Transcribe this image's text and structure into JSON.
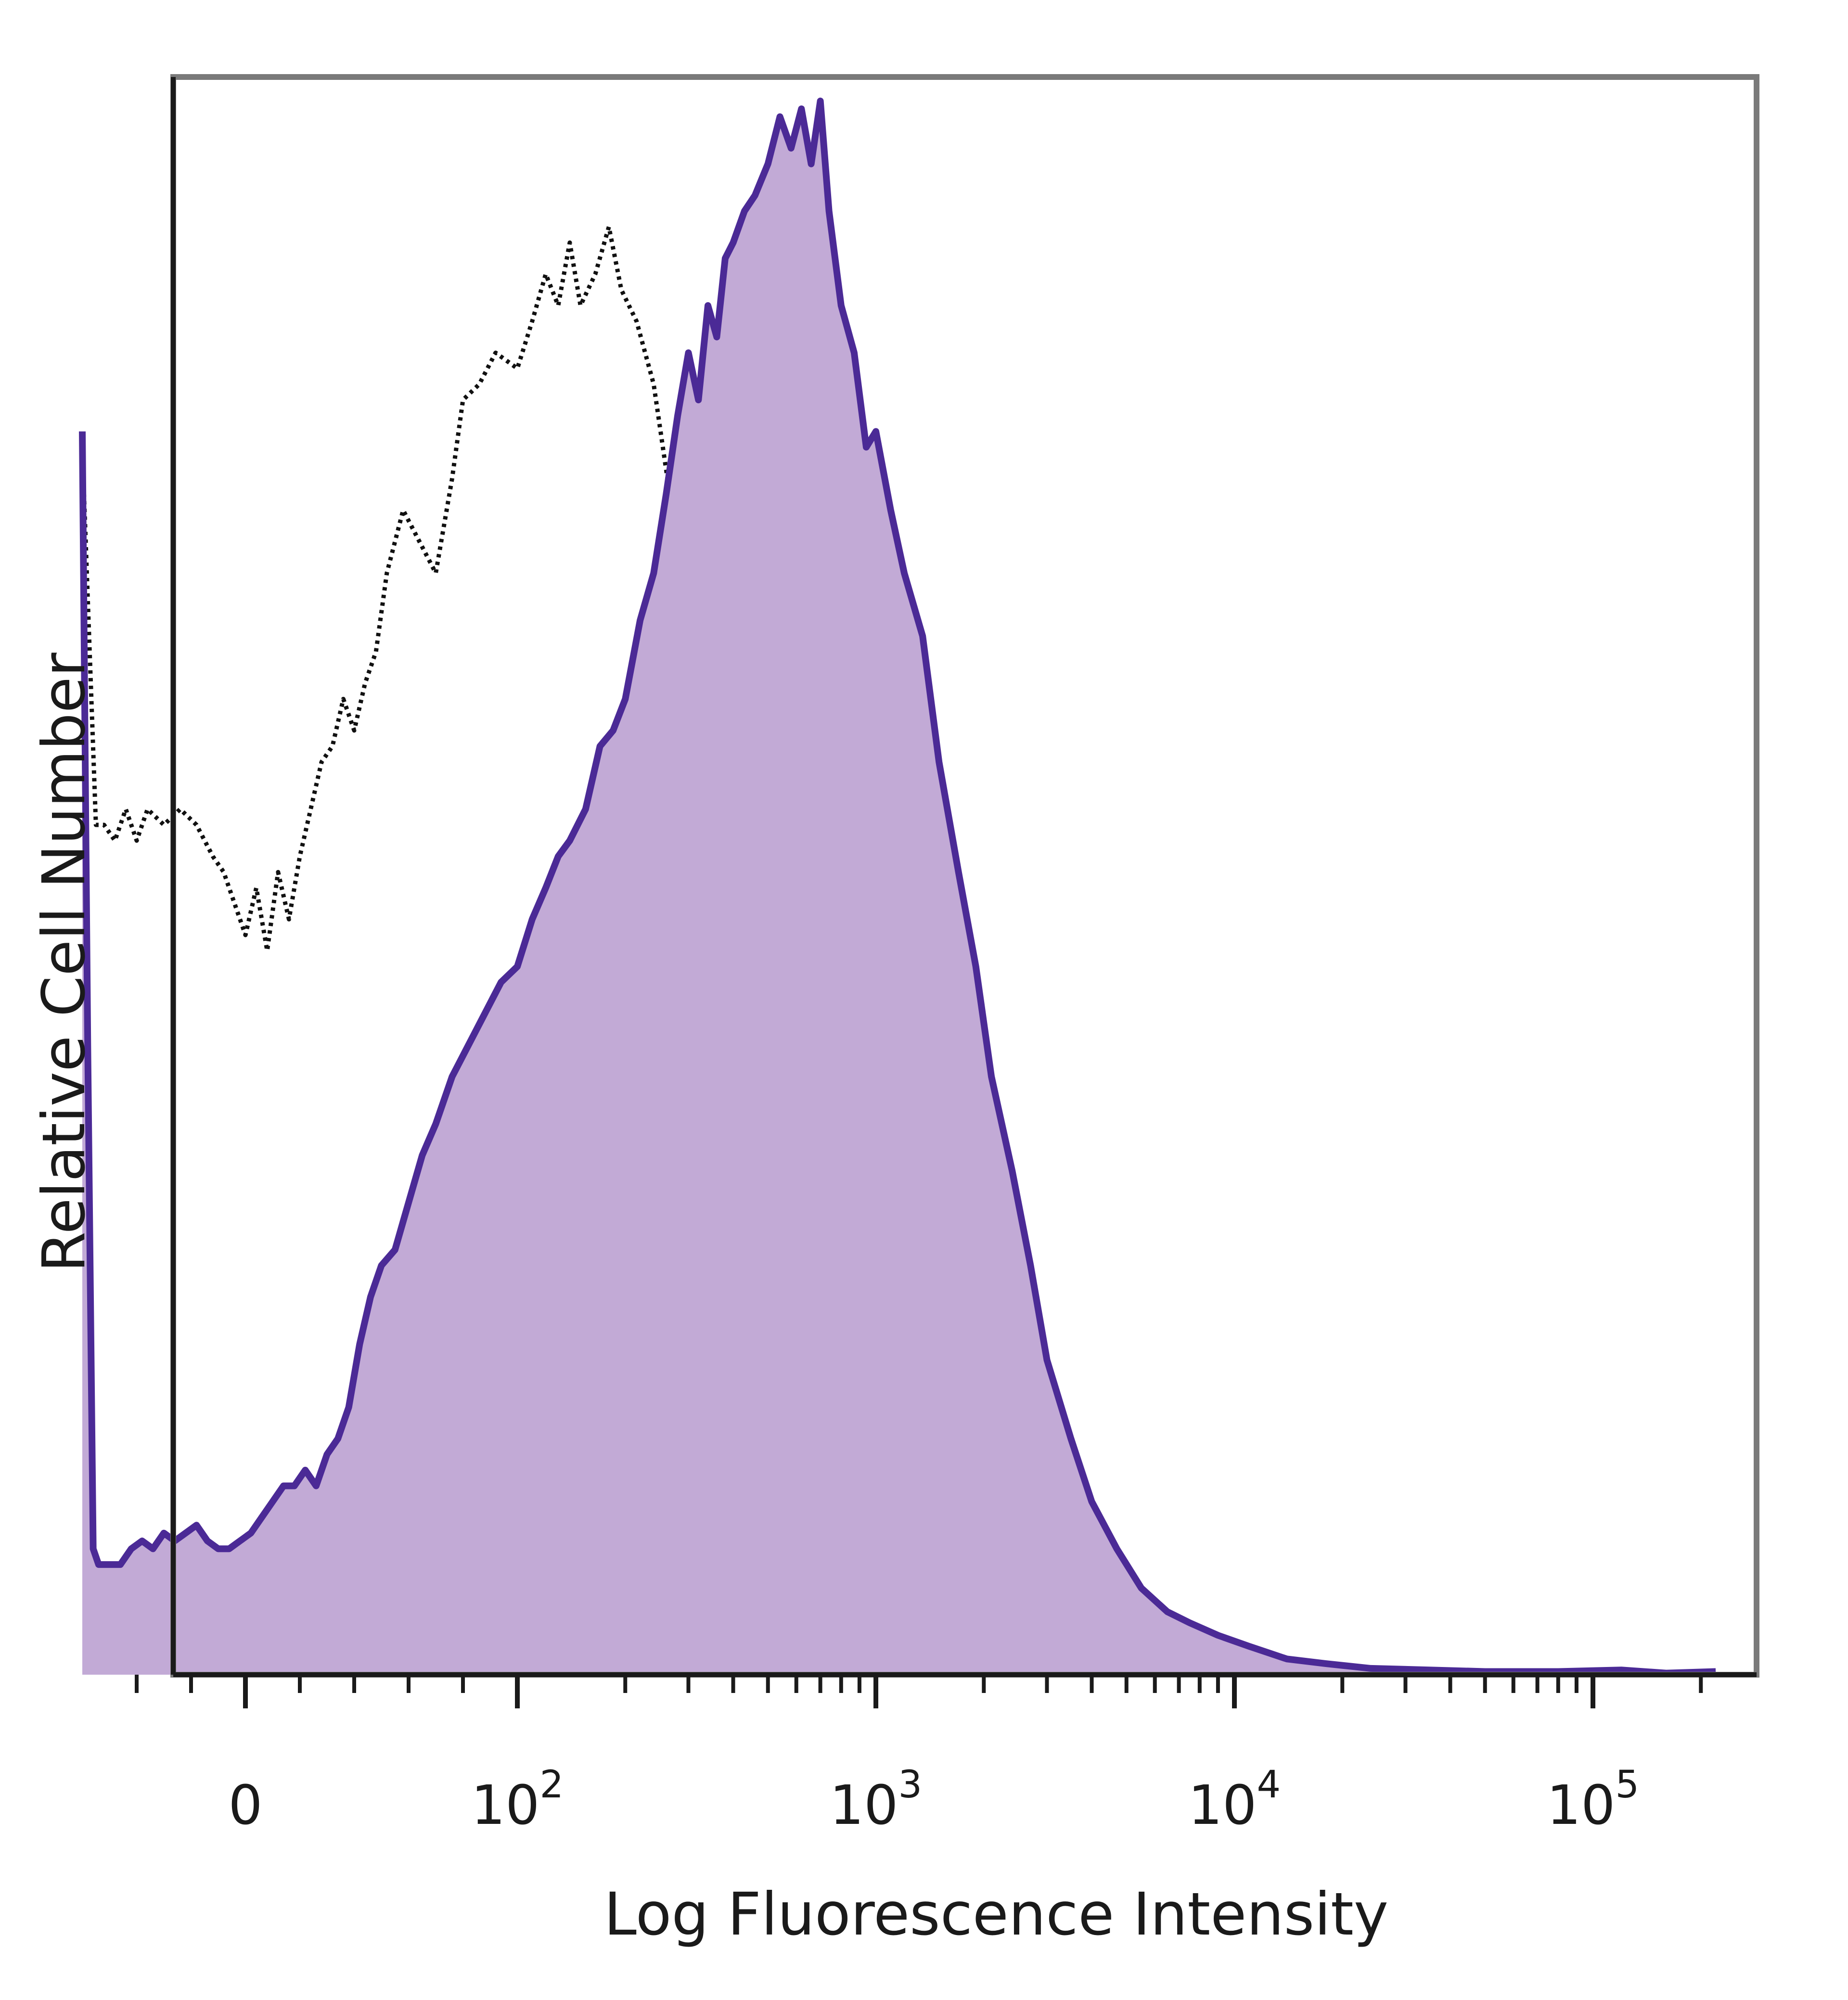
{
  "chart_data": {
    "type": "area",
    "title": "",
    "xlabel": "Log Fluorescence Intensity",
    "ylabel": "Relative Cell Number",
    "x_scale": "log",
    "xlim": [
      -60,
      250000
    ],
    "ylim": [
      0,
      1
    ],
    "grid": false,
    "legend": "none",
    "x_tick_labels": [
      {
        "value": 0,
        "label": "0"
      },
      {
        "value": 100,
        "base": "10",
        "exp": "2"
      },
      {
        "value": 1000,
        "base": "10",
        "exp": "3"
      },
      {
        "value": 10000,
        "base": "10",
        "exp": "4"
      },
      {
        "value": 100000,
        "base": "10",
        "exp": "5"
      }
    ],
    "x_minor_ticks": [
      -40,
      -20,
      20,
      40,
      60,
      80,
      200,
      300,
      400,
      500,
      600,
      700,
      800,
      900,
      2000,
      3000,
      4000,
      5000,
      6000,
      7000,
      8000,
      9000,
      20000,
      30000,
      40000,
      50000,
      60000,
      70000,
      80000,
      90000,
      200000
    ],
    "series": [
      {
        "style": "dotted",
        "color": "#111111",
        "fill": "none",
        "points": [
          [
            -60,
            0.78
          ],
          [
            -55,
            0.54
          ],
          [
            -52,
            0.54
          ],
          [
            -48,
            0.53
          ],
          [
            -44,
            0.55
          ],
          [
            -40,
            0.53
          ],
          [
            -36,
            0.55
          ],
          [
            -30,
            0.54
          ],
          [
            -24,
            0.55
          ],
          [
            -18,
            0.54
          ],
          [
            -12,
            0.52
          ],
          [
            -8,
            0.51
          ],
          [
            -4,
            0.49
          ],
          [
            0,
            0.47
          ],
          [
            4,
            0.5
          ],
          [
            8,
            0.46
          ],
          [
            12,
            0.51
          ],
          [
            16,
            0.48
          ],
          [
            20,
            0.52
          ],
          [
            24,
            0.55
          ],
          [
            28,
            0.58
          ],
          [
            32,
            0.59
          ],
          [
            36,
            0.62
          ],
          [
            40,
            0.6
          ],
          [
            44,
            0.63
          ],
          [
            48,
            0.65
          ],
          [
            52,
            0.7
          ],
          [
            58,
            0.74
          ],
          [
            64,
            0.72
          ],
          [
            70,
            0.7
          ],
          [
            76,
            0.76
          ],
          [
            80,
            0.81
          ],
          [
            86,
            0.82
          ],
          [
            92,
            0.84
          ],
          [
            100,
            0.83
          ],
          [
            110,
            0.86
          ],
          [
            120,
            0.89
          ],
          [
            130,
            0.87
          ],
          [
            140,
            0.91
          ],
          [
            150,
            0.87
          ],
          [
            165,
            0.89
          ],
          [
            180,
            0.92
          ],
          [
            195,
            0.88
          ],
          [
            215,
            0.86
          ],
          [
            240,
            0.82
          ],
          [
            270,
            0.74
          ],
          [
            300,
            0.64
          ],
          [
            340,
            0.52
          ],
          [
            380,
            0.4
          ],
          [
            420,
            0.29
          ],
          [
            460,
            0.2
          ],
          [
            500,
            0.13
          ],
          [
            560,
            0.07
          ],
          [
            620,
            0.03
          ],
          [
            700,
            0.015
          ],
          [
            800,
            0.005
          ],
          [
            900,
            0.003
          ],
          [
            1000,
            0.002
          ],
          [
            1200,
            0.004
          ],
          [
            1400,
            0.002
          ],
          [
            1600,
            0.003
          ],
          [
            1800,
            0.001
          ],
          [
            2200,
            0.0
          ]
        ]
      },
      {
        "style": "solid",
        "color": "#4b2a96",
        "fill": "#c2aad6",
        "points": [
          [
            -60,
            0.79
          ],
          [
            -58,
            0.4
          ],
          [
            -56,
            0.08
          ],
          [
            -54,
            0.07
          ],
          [
            -50,
            0.07
          ],
          [
            -46,
            0.07
          ],
          [
            -42,
            0.08
          ],
          [
            -38,
            0.085
          ],
          [
            -34,
            0.08
          ],
          [
            -30,
            0.09
          ],
          [
            -26,
            0.085
          ],
          [
            -22,
            0.09
          ],
          [
            -18,
            0.095
          ],
          [
            -14,
            0.085
          ],
          [
            -10,
            0.08
          ],
          [
            -6,
            0.08
          ],
          [
            -2,
            0.085
          ],
          [
            2,
            0.09
          ],
          [
            6,
            0.1
          ],
          [
            10,
            0.11
          ],
          [
            14,
            0.12
          ],
          [
            18,
            0.12
          ],
          [
            22,
            0.13
          ],
          [
            26,
            0.12
          ],
          [
            30,
            0.14
          ],
          [
            34,
            0.15
          ],
          [
            38,
            0.17
          ],
          [
            42,
            0.21
          ],
          [
            46,
            0.24
          ],
          [
            50,
            0.26
          ],
          [
            55,
            0.27
          ],
          [
            60,
            0.3
          ],
          [
            65,
            0.33
          ],
          [
            70,
            0.35
          ],
          [
            76,
            0.38
          ],
          [
            82,
            0.4
          ],
          [
            88,
            0.42
          ],
          [
            94,
            0.44
          ],
          [
            100,
            0.45
          ],
          [
            110,
            0.48
          ],
          [
            120,
            0.5
          ],
          [
            130,
            0.52
          ],
          [
            140,
            0.53
          ],
          [
            155,
            0.55
          ],
          [
            170,
            0.59
          ],
          [
            185,
            0.6
          ],
          [
            200,
            0.62
          ],
          [
            220,
            0.67
          ],
          [
            240,
            0.7
          ],
          [
            260,
            0.75
          ],
          [
            280,
            0.8
          ],
          [
            300,
            0.84
          ],
          [
            320,
            0.81
          ],
          [
            340,
            0.87
          ],
          [
            360,
            0.85
          ],
          [
            380,
            0.9
          ],
          [
            400,
            0.91
          ],
          [
            430,
            0.93
          ],
          [
            460,
            0.94
          ],
          [
            500,
            0.96
          ],
          [
            540,
            0.99
          ],
          [
            580,
            0.97
          ],
          [
            620,
            0.995
          ],
          [
            660,
            0.96
          ],
          [
            700,
            1.0
          ],
          [
            740,
            0.93
          ],
          [
            800,
            0.87
          ],
          [
            870,
            0.84
          ],
          [
            940,
            0.78
          ],
          [
            1000,
            0.79
          ],
          [
            1100,
            0.74
          ],
          [
            1200,
            0.7
          ],
          [
            1350,
            0.66
          ],
          [
            1500,
            0.58
          ],
          [
            1700,
            0.51
          ],
          [
            1900,
            0.45
          ],
          [
            2100,
            0.38
          ],
          [
            2400,
            0.32
          ],
          [
            2700,
            0.26
          ],
          [
            3000,
            0.2
          ],
          [
            3500,
            0.15
          ],
          [
            4000,
            0.11
          ],
          [
            4700,
            0.08
          ],
          [
            5500,
            0.055
          ],
          [
            6500,
            0.04
          ],
          [
            7500,
            0.033
          ],
          [
            9000,
            0.025
          ],
          [
            11000,
            0.018
          ],
          [
            14000,
            0.01
          ],
          [
            18000,
            0.007
          ],
          [
            24000,
            0.004
          ],
          [
            35000,
            0.003
          ],
          [
            50000,
            0.002
          ],
          [
            80000,
            0.002
          ],
          [
            120000,
            0.003
          ],
          [
            160000,
            0.001
          ],
          [
            220000,
            0.002
          ]
        ]
      }
    ]
  }
}
